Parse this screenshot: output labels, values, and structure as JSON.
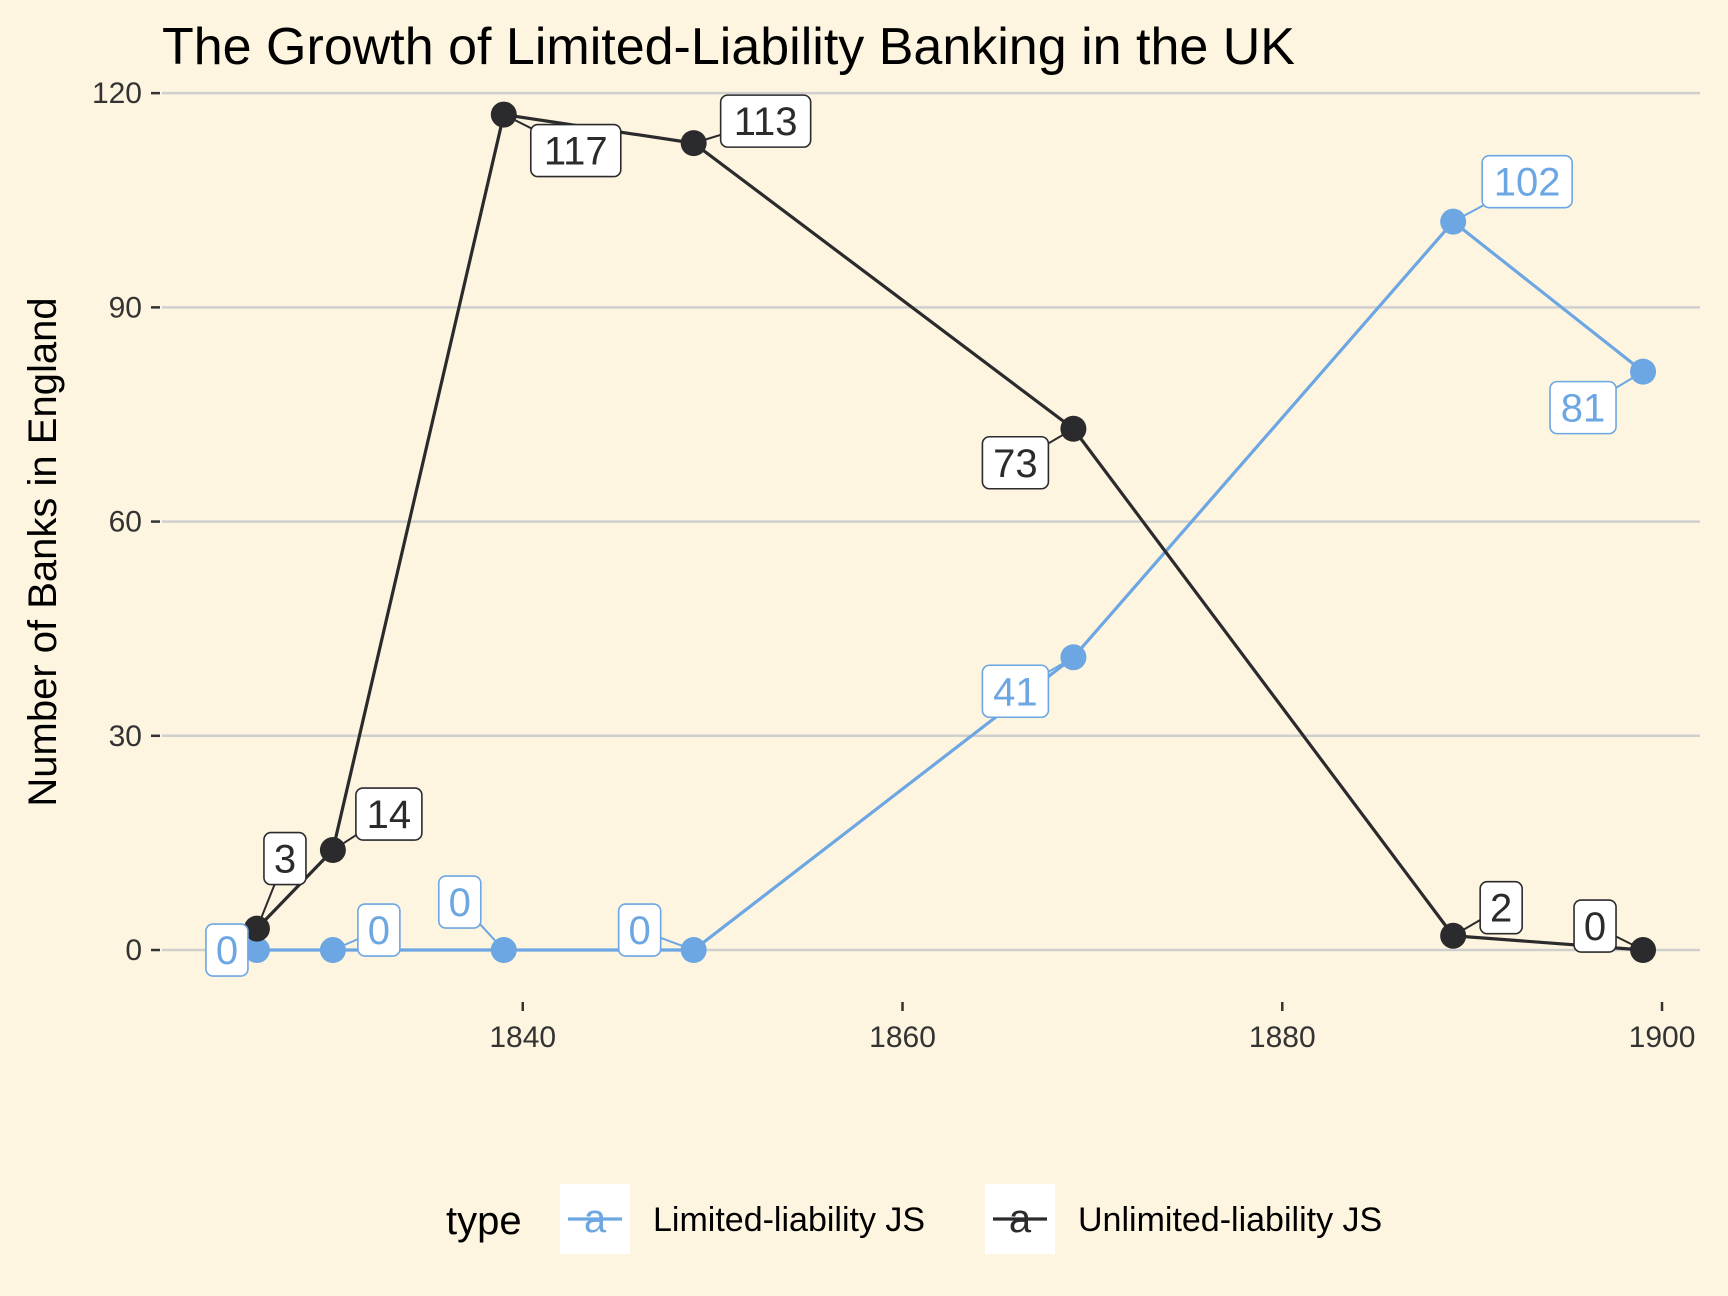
{
  "chart_data": {
    "type": "line",
    "title": "The Growth of Limited-Liability Banking in the UK",
    "xlabel": "",
    "ylabel": "Number of Banks in England",
    "xlim": [
      1821,
      1902
    ],
    "ylim": [
      -7,
      121
    ],
    "x_ticks": [
      1840,
      1860,
      1880,
      1900
    ],
    "y_ticks": [
      0,
      30,
      60,
      90,
      120
    ],
    "grid": "horizontal-major",
    "legend_title": "type",
    "legend_position": "bottom",
    "series": [
      {
        "name": "Limited-liability JS",
        "color": "#6ca6e3",
        "x": [
          1826,
          1830,
          1839,
          1849,
          1869,
          1889,
          1899
        ],
        "y": [
          0,
          0,
          0,
          0,
          41,
          102,
          81
        ],
        "labels": [
          "0",
          "0",
          "0",
          "0",
          "41",
          "102",
          "81"
        ]
      },
      {
        "name": "Unlimited-liability JS",
        "color": "#2b2b2e",
        "x": [
          1826,
          1830,
          1839,
          1849,
          1869,
          1889,
          1899
        ],
        "y": [
          3,
          14,
          117,
          113,
          73,
          2,
          0
        ],
        "labels": [
          "3",
          "14",
          "117",
          "113",
          "73",
          "2",
          "0"
        ]
      }
    ]
  }
}
